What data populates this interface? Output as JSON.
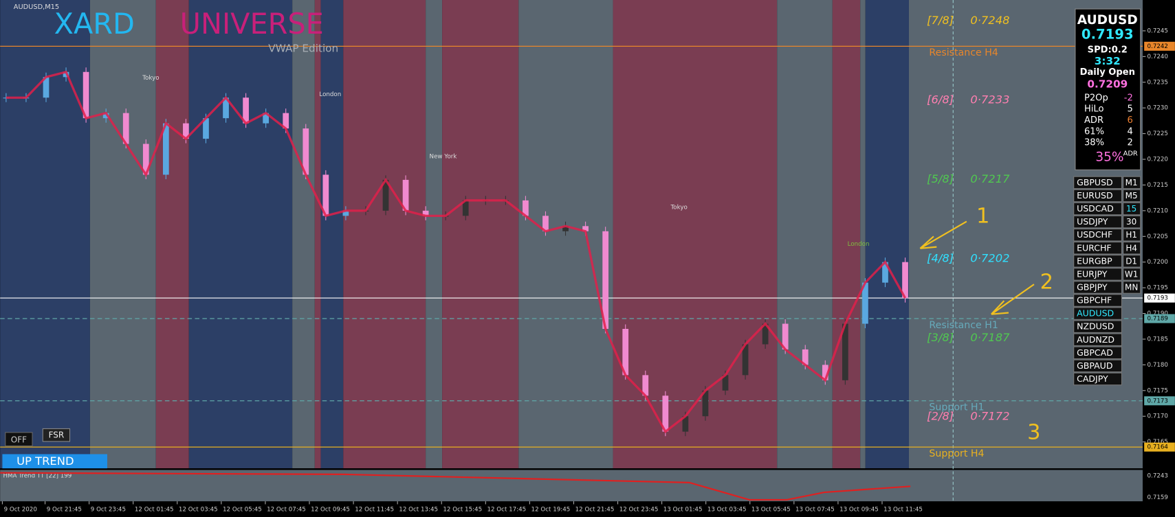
{
  "header": {
    "symbol": "AUDUSD,M15"
  },
  "logo": {
    "title1": "XARD",
    "title2": "UNIVERSE",
    "subtitle": "VWAP Edition"
  },
  "session_labels": [
    "Tokyo",
    "London",
    "New York",
    "Tokyo",
    "London"
  ],
  "price_axis": {
    "ylim": [
      0.716,
      0.7251
    ],
    "yticks": [
      {
        "value": 0.7165,
        "label": "0.7165"
      },
      {
        "value": 0.717,
        "label": "0.7170"
      },
      {
        "value": 0.7175,
        "label": "0.7175"
      },
      {
        "value": 0.718,
        "label": "0.7180"
      },
      {
        "value": 0.7185,
        "label": "0.7185"
      },
      {
        "value": 0.719,
        "label": "0.7190"
      },
      {
        "value": 0.7195,
        "label": "0.7195"
      },
      {
        "value": 0.72,
        "label": "0.7200"
      },
      {
        "value": 0.7205,
        "label": "0.7205"
      },
      {
        "value": 0.721,
        "label": "0.7210"
      },
      {
        "value": 0.7215,
        "label": "0.7215"
      },
      {
        "value": 0.722,
        "label": "0.7220"
      },
      {
        "value": 0.7225,
        "label": "0.7225"
      },
      {
        "value": 0.723,
        "label": "0.7230"
      },
      {
        "value": 0.7235,
        "label": "0.7235"
      },
      {
        "value": 0.724,
        "label": "0.7240"
      },
      {
        "value": 0.7245,
        "label": "0.7245"
      }
    ]
  },
  "closes": [
    0.7232,
    0.7232,
    0.7236,
    0.7237,
    0.7228,
    0.7229,
    0.7223,
    0.7217,
    0.7227,
    0.7224,
    0.7228,
    0.7232,
    0.7227,
    0.7229,
    0.7226,
    0.7217,
    0.7209,
    0.721,
    0.721,
    0.7216,
    0.721,
    0.7209,
    0.7209,
    0.7212,
    0.7212,
    0.7212,
    0.7209,
    0.7206,
    0.7207,
    0.7206,
    0.7187,
    0.7178,
    0.7174,
    0.7167,
    0.717,
    0.7175,
    0.7178,
    0.7184,
    0.7188,
    0.7183,
    0.718,
    0.7177,
    0.7188,
    0.7196,
    0.72,
    0.7193
  ],
  "levels": [
    {
      "name": "Resistance H4",
      "price": 0.7242,
      "tag": "0.7242",
      "color": "#e8862a"
    },
    {
      "name": "Support H4",
      "price": 0.7164,
      "tag": "0.7164",
      "color": "#e8b020"
    },
    {
      "name": "Resistance H1",
      "price": 0.7189,
      "tag": "0.7189",
      "color": "#5fa8a8"
    },
    {
      "name": "Support H1",
      "price": 0.7173,
      "tag": "0.7173",
      "color": "#5fa8a8"
    },
    {
      "price": 0.7193,
      "tag": "0.7193",
      "color": "#ffffff"
    }
  ],
  "murrey": [
    {
      "label": "[7/8]",
      "price_text": "0·7248",
      "color": "#f0c020"
    },
    {
      "label": "[6/8]",
      "price_text": "0·7233",
      "color": "#ff7fb0"
    },
    {
      "label": "[5/8]",
      "price_text": "0·7217",
      "color": "#50c850"
    },
    {
      "label": "[4/8]",
      "price_text": "0·7202",
      "color": "#30e0ff"
    },
    {
      "label": "[3/8]",
      "price_text": "0·7187",
      "color": "#50c850"
    },
    {
      "label": "[2/8]",
      "price_text": "0·7172",
      "color": "#ff7fb0"
    }
  ],
  "panel": {
    "symbol": "AUDUSD",
    "price": "0.7193",
    "spread": "SPD:0.2",
    "timer": "3:32",
    "daily_open_label": "Daily Open",
    "daily_open": "0.7209",
    "rows": [
      [
        "P2Op",
        "-2"
      ],
      [
        "HiLo",
        "5"
      ],
      [
        "ADR",
        "6"
      ],
      [
        "61%",
        "4"
      ],
      [
        "38%",
        "2"
      ]
    ],
    "adr_pct": "35%",
    "adr_sup": "ADR"
  },
  "symbols": [
    [
      "GBPUSD",
      "M1"
    ],
    [
      "EURUSD",
      "M5"
    ],
    [
      "USDCAD",
      "15"
    ],
    [
      "USDJPY",
      "30"
    ],
    [
      "USDCHF",
      "H1"
    ],
    [
      "EURCHF",
      "H4"
    ],
    [
      "EURGBP",
      "D1"
    ],
    [
      "EURJPY",
      "W1"
    ],
    [
      "GBPJPY",
      "MN"
    ],
    [
      "GBPCHF"
    ],
    [
      "AUDUSD"
    ],
    [
      "NZDUSD"
    ],
    [
      "AUDNZD"
    ],
    [
      "GBPCAD"
    ],
    [
      "GBPAUD"
    ],
    [
      "CADJPY"
    ]
  ],
  "annotations": [
    "1",
    "2",
    "3"
  ],
  "buttons": {
    "off": "OFF",
    "fsr": "FSR",
    "trend": "UP TREND"
  },
  "indicator": {
    "label": "HMA Trend TT [22] 199",
    "scale": [
      "0.7243",
      "0.7159"
    ]
  },
  "x_axis": [
    "9 Oct 2020",
    "9 Oct 21:45",
    "9 Oct 23:45",
    "12 Oct 01:45",
    "12 Oct 03:45",
    "12 Oct 05:45",
    "12 Oct 07:45",
    "12 Oct 09:45",
    "12 Oct 11:45",
    "12 Oct 13:45",
    "12 Oct 15:45",
    "12 Oct 17:45",
    "12 Oct 19:45",
    "12 Oct 21:45",
    "12 Oct 23:45",
    "13 Oct 01:45",
    "13 Oct 03:45",
    "13 Oct 05:45",
    "13 Oct 07:45",
    "13 Oct 09:45",
    "13 Oct 11:45"
  ]
}
